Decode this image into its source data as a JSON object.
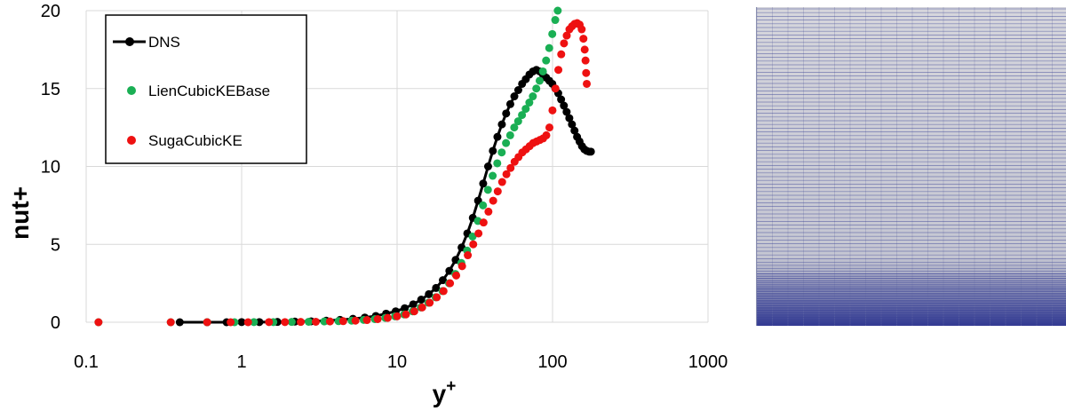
{
  "chart_data": {
    "type": "scatter",
    "title": "",
    "xlabel": "y",
    "xlabel_superscript": "+",
    "ylabel": "nut+",
    "xscale": "log",
    "xlim": [
      0.1,
      1000
    ],
    "ylim": [
      0,
      20
    ],
    "x_ticks": [
      "0.1",
      "1",
      "10",
      "100",
      "1000"
    ],
    "y_ticks": [
      "0",
      "5",
      "10",
      "15",
      "20"
    ],
    "grid": true,
    "legend_position": "top-left",
    "series": [
      {
        "name": "DNS",
        "color": "#000000",
        "style": "line-markers",
        "x": [
          0.4,
          0.6,
          0.8,
          1.0,
          1.3,
          1.7,
          2.2,
          2.8,
          3.5,
          4.3,
          5.2,
          6.2,
          7.3,
          8.5,
          9.8,
          11.2,
          12.7,
          14.3,
          16.0,
          17.8,
          19.7,
          21.7,
          23.8,
          26.0,
          28.3,
          30.7,
          33.2,
          35.8,
          38.5,
          41.3,
          44.2,
          47.2,
          50.3,
          53.5,
          56.8,
          60.2,
          63.7,
          67.3,
          71.0,
          74.8,
          78.7,
          82.7,
          86.8,
          91.0,
          95.3,
          99.7,
          104.2,
          108.8,
          113.5,
          118.3,
          123.2,
          128.2,
          133.3,
          138.5,
          143.8,
          149.2,
          154.7,
          160.3,
          166.0,
          171.8,
          176.5
        ],
        "y": [
          0.0,
          0.0,
          0.0,
          0.01,
          0.01,
          0.02,
          0.04,
          0.06,
          0.1,
          0.15,
          0.22,
          0.3,
          0.4,
          0.55,
          0.7,
          0.9,
          1.15,
          1.45,
          1.8,
          2.2,
          2.7,
          3.3,
          4.0,
          4.8,
          5.7,
          6.7,
          7.8,
          8.9,
          10.0,
          11.0,
          11.9,
          12.7,
          13.4,
          14.0,
          14.5,
          14.9,
          15.3,
          15.6,
          15.9,
          16.1,
          16.2,
          16.1,
          15.9,
          15.7,
          15.5,
          15.3,
          15.0,
          14.7,
          14.3,
          13.9,
          13.5,
          13.1,
          12.7,
          12.3,
          11.9,
          11.6,
          11.3,
          11.1,
          11.0,
          10.95,
          10.95
        ]
      },
      {
        "name": "LienCubicKEBase",
        "color": "#1aaf54",
        "style": "markers",
        "x": [
          0.12,
          0.35,
          0.6,
          0.9,
          1.2,
          1.6,
          2.1,
          2.7,
          3.4,
          4.2,
          5.1,
          6.1,
          7.2,
          8.4,
          9.7,
          11.1,
          12.6,
          14.2,
          15.9,
          17.7,
          19.6,
          21.6,
          23.7,
          25.9,
          28.2,
          30.6,
          33.1,
          35.7,
          38.4,
          41.2,
          44.1,
          47.1,
          50.2,
          53.4,
          56.7,
          60.1,
          63.6,
          67.2,
          70.9,
          74.7,
          78.6,
          82.6,
          86.7,
          90.9,
          95.2,
          99.6,
          104.1,
          108.0
        ],
        "y": [
          0.0,
          0.0,
          0.0,
          0.0,
          0.01,
          0.01,
          0.02,
          0.03,
          0.05,
          0.07,
          0.1,
          0.15,
          0.2,
          0.28,
          0.38,
          0.5,
          0.7,
          0.95,
          1.25,
          1.6,
          2.0,
          2.5,
          3.1,
          3.8,
          4.6,
          5.5,
          6.5,
          7.5,
          8.5,
          9.4,
          10.2,
          10.9,
          11.5,
          12.0,
          12.5,
          12.9,
          13.3,
          13.7,
          14.1,
          14.5,
          15.0,
          15.5,
          16.1,
          16.8,
          17.6,
          18.5,
          19.4,
          20.0
        ]
      },
      {
        "name": "SugaCubicKE",
        "color": "#ee1111",
        "style": "markers",
        "x": [
          0.12,
          0.35,
          0.6,
          0.85,
          1.1,
          1.5,
          1.9,
          2.4,
          3.0,
          3.7,
          4.5,
          5.4,
          6.4,
          7.5,
          8.7,
          10.0,
          11.4,
          12.9,
          14.5,
          16.2,
          18.0,
          19.9,
          21.9,
          24.0,
          26.2,
          28.5,
          30.9,
          33.4,
          36.0,
          38.7,
          41.5,
          44.4,
          47.4,
          50.5,
          53.7,
          57.0,
          60.4,
          63.9,
          67.5,
          71.2,
          75.0,
          78.9,
          82.9,
          87.0,
          91.2,
          95.5,
          99.9,
          104.4,
          109.0,
          113.7,
          118.5,
          123.4,
          128.4,
          133.5,
          138.7,
          144.0,
          149.4,
          154.0,
          158.0,
          161.0,
          163.0,
          164.5,
          166.0
        ],
        "y": [
          0.0,
          0.0,
          0.0,
          0.0,
          0.0,
          0.01,
          0.01,
          0.02,
          0.03,
          0.05,
          0.07,
          0.1,
          0.14,
          0.2,
          0.28,
          0.38,
          0.5,
          0.7,
          0.95,
          1.25,
          1.6,
          2.0,
          2.5,
          3.0,
          3.6,
          4.3,
          5.0,
          5.7,
          6.4,
          7.1,
          7.8,
          8.4,
          9.0,
          9.5,
          9.9,
          10.3,
          10.6,
          10.9,
          11.1,
          11.3,
          11.5,
          11.6,
          11.7,
          11.8,
          12.0,
          12.5,
          13.6,
          15.0,
          16.2,
          17.2,
          17.9,
          18.4,
          18.8,
          19.0,
          19.15,
          19.2,
          19.1,
          18.8,
          18.2,
          17.5,
          16.8,
          16.0,
          15.3
        ]
      }
    ]
  }
}
